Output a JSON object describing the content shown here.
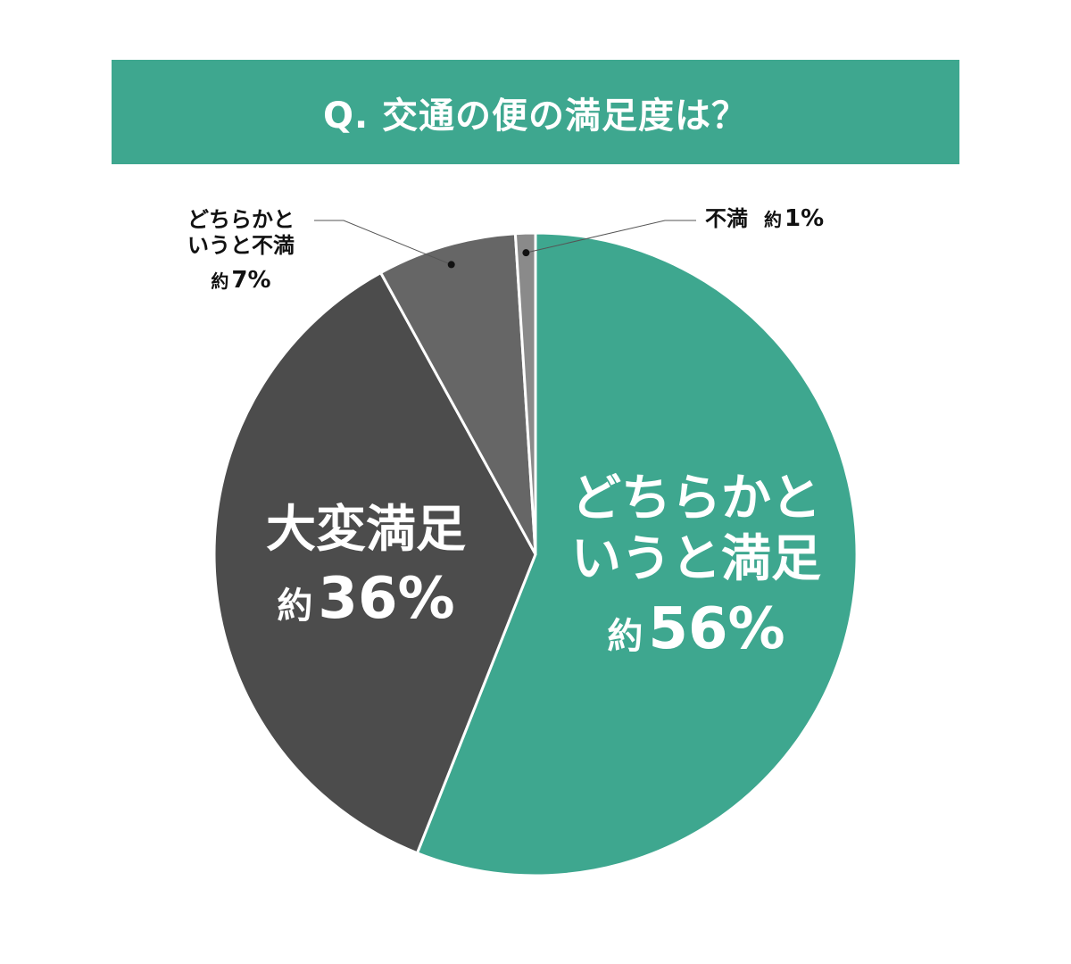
{
  "title": "Q. 交通の便の満足度は？",
  "colors": {
    "accent": "#3ea78f",
    "dark": "#4c4c4c",
    "mid": "#666666",
    "light": "#8a8a8a"
  },
  "chart_data": {
    "type": "pie",
    "title": "Q. 交通の便の満足度は？",
    "start": "top, clockwise",
    "slices": [
      {
        "id": "somewhat_satisfied",
        "label_line1": "どちらかと",
        "label_line2": "いうと満足",
        "about": "約",
        "percent_text": "56%",
        "value": 56,
        "color": "#3ea78f"
      },
      {
        "id": "very_satisfied",
        "label_line1": "大変満足",
        "about": "約",
        "percent_text": "36%",
        "value": 36,
        "color": "#4c4c4c"
      },
      {
        "id": "somewhat_dissatisfied",
        "label_line1": "どちらかと",
        "label_line2": "いうと不満",
        "about": "約",
        "percent_text": "7%",
        "value": 7,
        "color": "#666666"
      },
      {
        "id": "dissatisfied",
        "label_line1": "不満",
        "about": "約",
        "percent_text": "1%",
        "value": 1,
        "color": "#8a8a8a"
      }
    ]
  }
}
